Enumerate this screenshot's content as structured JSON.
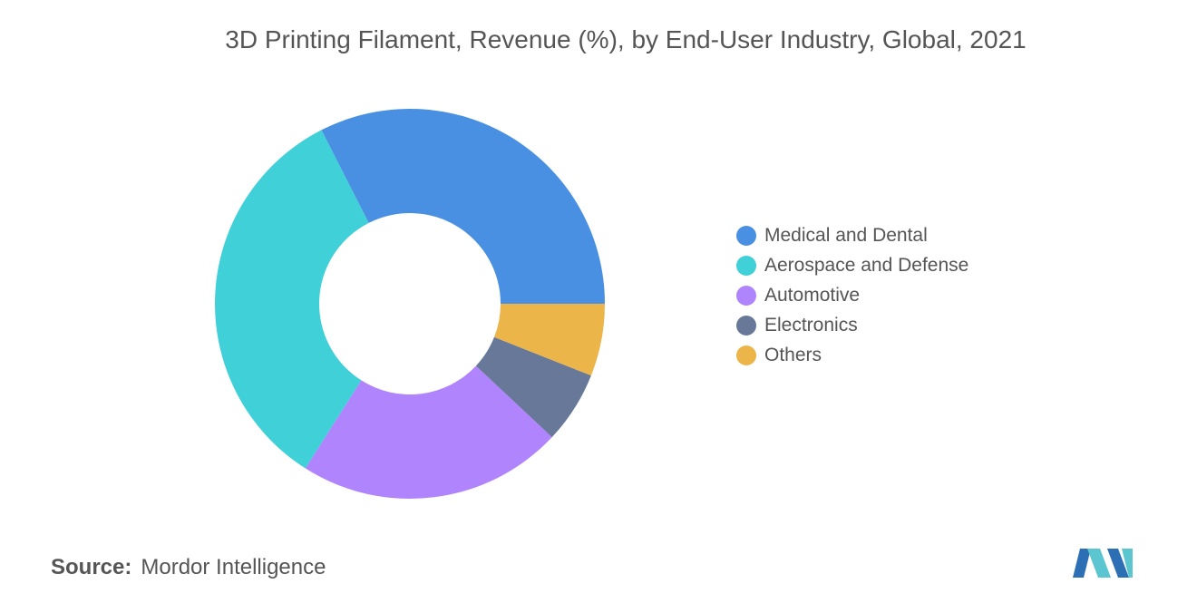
{
  "chart_data": {
    "type": "pie",
    "title": "3D Printing Filament, Revenue (%), by End-User Industry, Global, 2021",
    "donut": true,
    "categories": [
      "Medical and Dental",
      "Aerospace and Defense",
      "Automotive",
      "Electronics",
      "Others"
    ],
    "values": [
      32.5,
      33.5,
      22,
      6,
      6
    ],
    "colors": [
      "#4a90e2",
      "#40d0d8",
      "#b084fc",
      "#677899",
      "#ecb54a"
    ],
    "legend_position": "right"
  },
  "source": {
    "label": "Source:",
    "text": "Mordor Intelligence"
  },
  "logo": {
    "icon": "mordor-intelligence-logo-icon",
    "colors": [
      "#2d6fb5",
      "#5cc6d0"
    ]
  }
}
